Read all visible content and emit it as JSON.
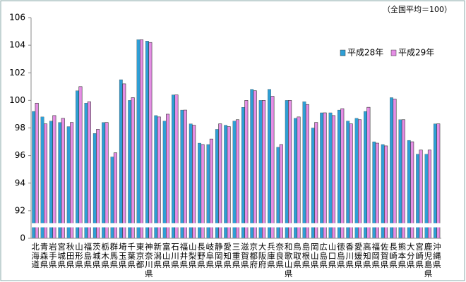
{
  "chart_data": {
    "type": "bar",
    "note": "（全国平均＝100）",
    "categories": [
      "北海道",
      "青森県",
      "岩手県",
      "宮城県",
      "秋田県",
      "山形県",
      "福島県",
      "茨城県",
      "栃木県",
      "群馬県",
      "埼玉県",
      "千葉県",
      "東京都",
      "神奈川県",
      "新潟県",
      "富山県",
      "石川県",
      "福井県",
      "山梨県",
      "長野県",
      "岐阜県",
      "静岡県",
      "愛知県",
      "三重県",
      "滋賀県",
      "京都府",
      "大阪府",
      "兵庫県",
      "奈良県",
      "和歌山県",
      "鳥取県",
      "島根県",
      "岡山県",
      "広島県",
      "山口県",
      "徳島県",
      "香川県",
      "愛媛県",
      "高知県",
      "福岡県",
      "佐賀県",
      "長崎県",
      "熊本県",
      "大分県",
      "宮崎県",
      "鹿児島県",
      "沖縄県"
    ],
    "series": [
      {
        "name": "平成28年",
        "color": "#2e9fd6",
        "values": [
          99.2,
          98.8,
          98.5,
          98.4,
          98.1,
          100.7,
          99.8,
          97.6,
          98.4,
          95.9,
          101.5,
          100.0,
          104.4,
          104.3,
          98.9,
          98.5,
          100.4,
          99.3,
          98.3,
          96.9,
          96.8,
          97.9,
          98.2,
          98.5,
          99.5,
          100.8,
          100.0,
          100.8,
          96.6,
          100.0,
          98.7,
          99.9,
          98.0,
          99.1,
          99.1,
          99.3,
          98.5,
          98.7,
          99.2,
          97.0,
          96.8,
          100.2,
          98.6,
          97.1,
          96.1,
          96.1,
          98.3
        ]
      },
      {
        "name": "平成29年",
        "color": "#e58ee5",
        "values": [
          99.8,
          98.3,
          98.9,
          98.7,
          98.4,
          101.0,
          99.9,
          97.9,
          98.4,
          96.2,
          101.2,
          100.2,
          104.4,
          104.2,
          98.8,
          99.0,
          100.4,
          99.3,
          98.2,
          96.8,
          97.2,
          98.3,
          98.1,
          98.6,
          100.0,
          100.7,
          100.0,
          100.3,
          96.8,
          100.0,
          98.8,
          99.7,
          98.4,
          99.1,
          98.9,
          99.4,
          98.3,
          98.6,
          99.5,
          96.9,
          96.7,
          100.1,
          98.6,
          97.0,
          96.4,
          96.4,
          98.3
        ]
      }
    ],
    "ylim": [
      0,
      106
    ],
    "yticks": [
      0,
      92,
      94,
      96,
      98,
      100,
      102,
      104,
      106
    ]
  }
}
